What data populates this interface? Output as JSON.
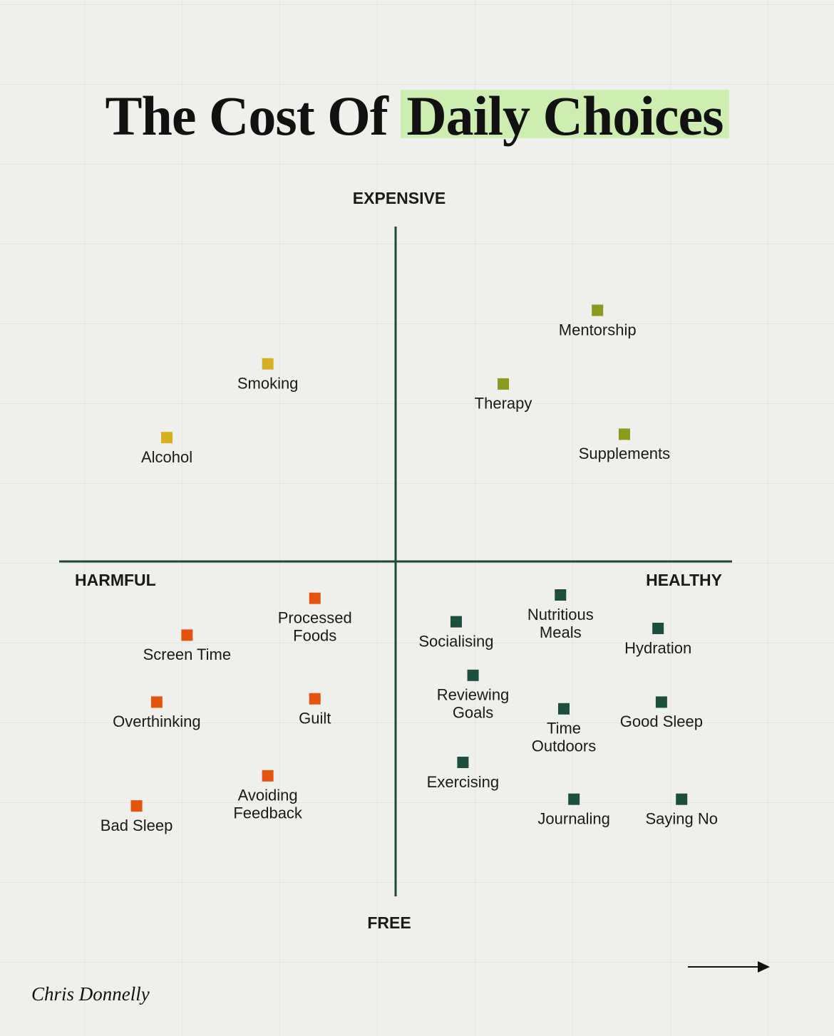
{
  "chart_data": {
    "type": "quadrant",
    "title": [
      "The Cost Of",
      "Daily Choices"
    ],
    "y_label_top": "EXPENSIVE",
    "y_label_bottom": "FREE",
    "x_label_left": "HARMFUL",
    "x_label_right": "HEALTHY",
    "xlim": [
      -10,
      10
    ],
    "ylim": [
      -10,
      10
    ],
    "author": "Chris Donnelly",
    "series": [
      {
        "color": "#d4b022",
        "labels": [
          [
            "Smoking"
          ],
          [
            "Alcohol"
          ]
        ],
        "x": [
          -3.8,
          -6.8
        ],
        "values": [
          5.9,
          3.7
        ]
      },
      {
        "color": "#8c9a1e",
        "labels": [
          [
            "Mentorship"
          ],
          [
            "Therapy"
          ],
          [
            "Supplements"
          ]
        ],
        "x": [
          6.0,
          3.2,
          6.8
        ],
        "values": [
          7.5,
          5.3,
          3.8
        ]
      },
      {
        "color": "#e4540f",
        "labels": [
          [
            "Processed",
            "Foods"
          ],
          [
            "Screen Time"
          ],
          [
            "Overthinking"
          ],
          [
            "Guilt"
          ],
          [
            "Avoiding",
            "Feedback"
          ],
          [
            "Bad Sleep"
          ]
        ],
        "x": [
          -2.4,
          -6.2,
          -7.1,
          -2.4,
          -3.8,
          -7.7
        ],
        "values": [
          -1.1,
          -2.2,
          -4.2,
          -4.1,
          -6.4,
          -7.3
        ]
      },
      {
        "color": "#1d4f3f",
        "labels": [
          [
            "Socialising"
          ],
          [
            "Nutritious",
            "Meals"
          ],
          [
            "Hydration"
          ],
          [
            "Reviewing",
            "Goals"
          ],
          [
            "Time",
            "Outdoors"
          ],
          [
            "Good Sleep"
          ],
          [
            "Exercising"
          ],
          [
            "Journaling"
          ],
          [
            "Saying No"
          ]
        ],
        "x": [
          1.8,
          4.9,
          7.8,
          2.3,
          5.0,
          7.9,
          2.0,
          5.3,
          8.5
        ],
        "values": [
          -1.8,
          -1.0,
          -2.0,
          -3.4,
          -4.4,
          -4.2,
          -6.0,
          -7.1,
          -7.1
        ]
      }
    ]
  }
}
